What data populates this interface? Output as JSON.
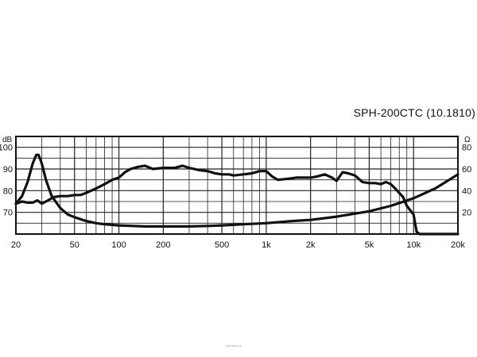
{
  "chart_data": {
    "type": "line",
    "title": "SPH-200CTC (10.1810)",
    "x_scale": "log",
    "xlim": [
      20,
      20000
    ],
    "x_ticks": [
      20,
      50,
      100,
      200,
      500,
      1000,
      2000,
      5000,
      10000,
      20000
    ],
    "x_tick_labels": [
      "20",
      "50",
      "100",
      "200",
      "500",
      "1k",
      "2k",
      "5k",
      "10k",
      "20k"
    ],
    "y_left": {
      "unit": "dB",
      "lim": [
        60,
        105
      ],
      "ticks": [
        70,
        80,
        90,
        100
      ],
      "tick_labels": [
        "70",
        "80",
        "90",
        "100"
      ]
    },
    "y_right": {
      "unit": "Ω",
      "lim": [
        0,
        90
      ],
      "ticks": [
        20,
        40,
        60,
        80
      ],
      "tick_labels": [
        "20",
        "40",
        "60",
        "80"
      ]
    },
    "grid": true,
    "series": [
      {
        "axis": "left",
        "points": [
          [
            20,
            74
          ],
          [
            22,
            75
          ],
          [
            24,
            74.5
          ],
          [
            26,
            74.5
          ],
          [
            28,
            75.5
          ],
          [
            30,
            74
          ],
          [
            33,
            75.5
          ],
          [
            36,
            77
          ],
          [
            40,
            77.5
          ],
          [
            45,
            77.5
          ],
          [
            50,
            78
          ],
          [
            55,
            78
          ],
          [
            60,
            79
          ],
          [
            70,
            81
          ],
          [
            80,
            83
          ],
          [
            90,
            85
          ],
          [
            100,
            86
          ],
          [
            110,
            88.5
          ],
          [
            120,
            90
          ],
          [
            135,
            91
          ],
          [
            150,
            91.5
          ],
          [
            170,
            90
          ],
          [
            200,
            90.5
          ],
          [
            240,
            90.5
          ],
          [
            270,
            91.5
          ],
          [
            300,
            90.5
          ],
          [
            350,
            89.5
          ],
          [
            400,
            89
          ],
          [
            450,
            88
          ],
          [
            500,
            87.5
          ],
          [
            560,
            87.5
          ],
          [
            600,
            87
          ],
          [
            700,
            87.5
          ],
          [
            800,
            88
          ],
          [
            900,
            89
          ],
          [
            1000,
            89
          ],
          [
            1100,
            86.5
          ],
          [
            1200,
            85
          ],
          [
            1400,
            85.5
          ],
          [
            1600,
            86
          ],
          [
            1800,
            86
          ],
          [
            2000,
            86
          ],
          [
            2200,
            86.5
          ],
          [
            2500,
            87.5
          ],
          [
            2800,
            86
          ],
          [
            3000,
            84.5
          ],
          [
            3300,
            88.5
          ],
          [
            3600,
            88
          ],
          [
            4000,
            87
          ],
          [
            4500,
            84
          ],
          [
            5000,
            83.5
          ],
          [
            5500,
            83.5
          ],
          [
            6000,
            83
          ],
          [
            6500,
            84
          ],
          [
            7000,
            83
          ],
          [
            7500,
            81
          ],
          [
            8000,
            79
          ],
          [
            8500,
            77
          ],
          [
            9000,
            73
          ],
          [
            10000,
            69
          ],
          [
            10500,
            61
          ],
          [
            11000,
            60
          ],
          [
            20000,
            60
          ]
        ]
      },
      {
        "axis": "right",
        "points": [
          [
            20,
            28
          ],
          [
            22,
            35
          ],
          [
            24,
            48
          ],
          [
            26,
            65
          ],
          [
            27.5,
            73
          ],
          [
            28.5,
            73
          ],
          [
            30,
            65
          ],
          [
            32,
            50
          ],
          [
            35,
            35
          ],
          [
            40,
            24
          ],
          [
            45,
            18
          ],
          [
            50,
            15.5
          ],
          [
            60,
            12
          ],
          [
            70,
            10
          ],
          [
            80,
            9
          ],
          [
            100,
            8
          ],
          [
            150,
            7
          ],
          [
            200,
            7
          ],
          [
            300,
            7
          ],
          [
            400,
            7.5
          ],
          [
            500,
            8
          ],
          [
            700,
            9
          ],
          [
            1000,
            10
          ],
          [
            1500,
            12
          ],
          [
            2000,
            13
          ],
          [
            3000,
            16
          ],
          [
            5000,
            21
          ],
          [
            7000,
            26
          ],
          [
            10000,
            33
          ],
          [
            14000,
            42
          ],
          [
            17000,
            49
          ],
          [
            20000,
            55
          ]
        ]
      }
    ]
  },
  "watermark": "monacor.pl"
}
